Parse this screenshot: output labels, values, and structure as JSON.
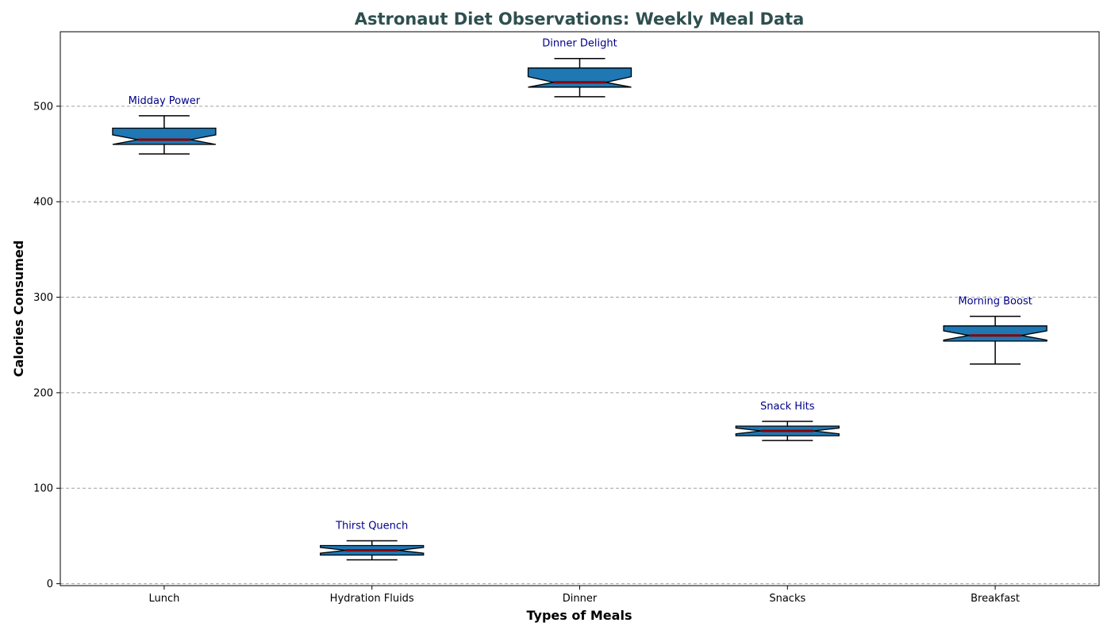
{
  "chart_data": {
    "type": "box",
    "title": "Astronaut Diet Observations: Weekly Meal Data",
    "xlabel": "Types of Meals",
    "ylabel": "Calories Consumed",
    "ylim": [
      -2,
      578
    ],
    "yticks": [
      0,
      100,
      200,
      300,
      400,
      500
    ],
    "grid": "y-dashed",
    "categories": [
      "Lunch",
      "Hydration Fluids",
      "Dinner",
      "Snacks",
      "Breakfast"
    ],
    "boxes": [
      {
        "category": "Lunch",
        "whisker_low": 450,
        "q1": 460,
        "median": 465,
        "q3": 477,
        "whisker_high": 490,
        "annotation": "Midday Power"
      },
      {
        "category": "Hydration Fluids",
        "whisker_low": 25,
        "q1": 30,
        "median": 35,
        "q3": 40,
        "whisker_high": 45,
        "annotation": "Thirst Quench"
      },
      {
        "category": "Dinner",
        "whisker_low": 510,
        "q1": 520,
        "median": 525,
        "q3": 540,
        "whisker_high": 550,
        "annotation": "Dinner Delight"
      },
      {
        "category": "Snacks",
        "whisker_low": 150,
        "q1": 155,
        "median": 160,
        "q3": 165,
        "whisker_high": 170,
        "annotation": "Snack Hits"
      },
      {
        "category": "Breakfast",
        "whisker_low": 230,
        "q1": 254,
        "median": 260,
        "q3": 270,
        "whisker_high": 280,
        "annotation": "Morning Boost"
      }
    ],
    "colors": {
      "box_fill": "#1f77b4",
      "median": "#8b0000",
      "title": "#2f4f4f",
      "annotation": "#00008b",
      "grid": "#a0a0a0"
    }
  }
}
